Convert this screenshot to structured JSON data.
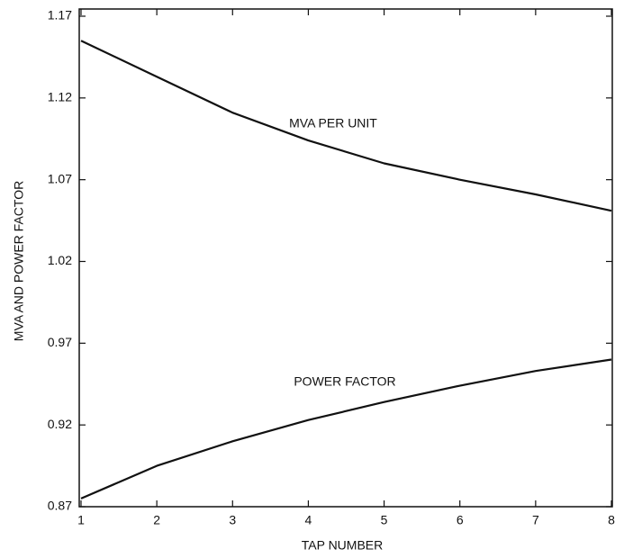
{
  "chart_data": {
    "type": "line",
    "x_label": "TAP NUMBER",
    "y_label": "MVA AND POWER FACTOR",
    "x": [
      1,
      2,
      3,
      4,
      5,
      6,
      7,
      8
    ],
    "series": [
      {
        "name": "MVA PER UNIT",
        "color": "#111111",
        "values": [
          1.155,
          1.133,
          1.111,
          1.094,
          1.08,
          1.07,
          1.061,
          1.051
        ]
      },
      {
        "name": "POWER FACTOR",
        "color": "#111111",
        "values": [
          0.875,
          0.895,
          0.91,
          0.923,
          0.934,
          0.944,
          0.953,
          0.96
        ]
      }
    ],
    "xlim": [
      1,
      8
    ],
    "xticks": [
      1,
      2,
      3,
      4,
      5,
      6,
      7,
      8
    ],
    "ylim": [
      0.87,
      1.17
    ],
    "yticks": [
      0.87,
      0.92,
      0.97,
      1.02,
      1.07,
      1.12,
      1.17
    ],
    "grid": false
  }
}
